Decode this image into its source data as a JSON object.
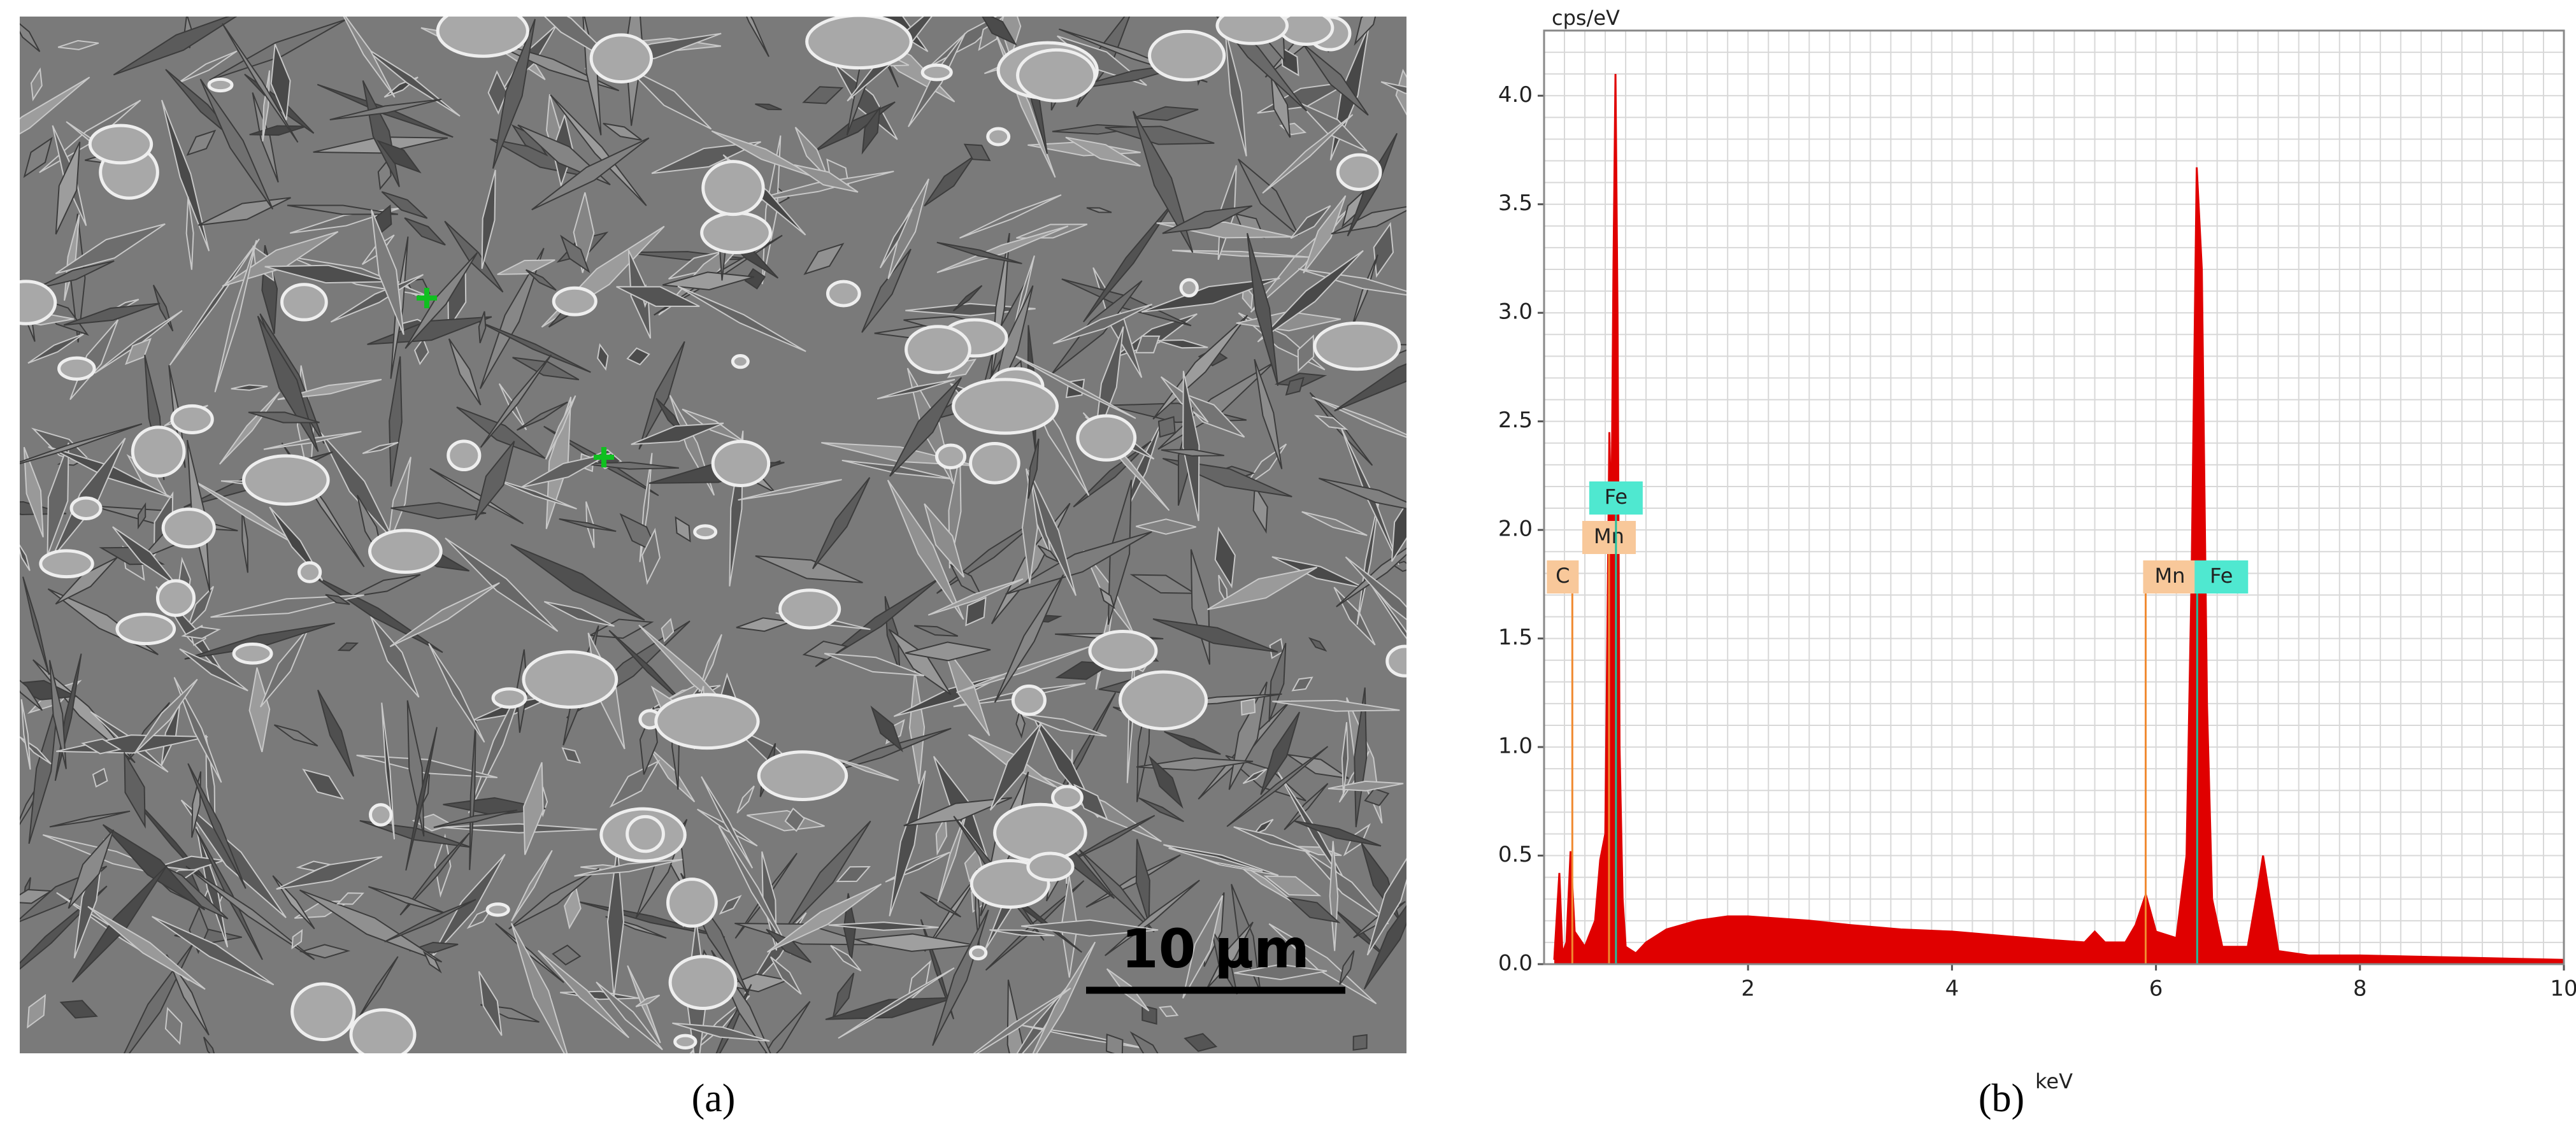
{
  "figure": {
    "caption_a": "(a)",
    "caption_b": "(b)",
    "scale_bar": "10 µm"
  },
  "chart_data": {
    "type": "spectrum",
    "title": "cps/eV",
    "x_label": "keV",
    "color": "#e00000",
    "x": [
      0.1,
      0.15,
      0.18,
      0.22,
      0.26,
      0.3,
      0.4,
      0.5,
      0.55,
      0.6,
      0.62,
      0.64,
      0.66,
      0.68,
      0.7,
      0.72,
      0.74,
      0.77,
      0.8,
      0.9,
      1.0,
      1.2,
      1.5,
      1.8,
      2.0,
      2.3,
      2.6,
      3.0,
      3.5,
      4.0,
      4.5,
      5.0,
      5.3,
      5.4,
      5.5,
      5.7,
      5.8,
      5.9,
      6.0,
      6.2,
      6.3,
      6.35,
      6.4,
      6.45,
      6.5,
      6.55,
      6.65,
      6.9,
      7.0,
      7.05,
      7.1,
      7.2,
      7.5,
      8.0,
      9.0,
      10.0
    ],
    "values": [
      0.02,
      0.42,
      0.05,
      0.1,
      0.52,
      0.15,
      0.08,
      0.2,
      0.48,
      0.6,
      1.5,
      2.45,
      2.0,
      3.2,
      4.1,
      3.0,
      1.0,
      0.3,
      0.08,
      0.05,
      0.1,
      0.16,
      0.2,
      0.22,
      0.22,
      0.21,
      0.2,
      0.18,
      0.16,
      0.15,
      0.13,
      0.11,
      0.1,
      0.15,
      0.1,
      0.1,
      0.18,
      0.32,
      0.15,
      0.12,
      0.5,
      1.8,
      3.67,
      3.2,
      1.2,
      0.3,
      0.08,
      0.08,
      0.35,
      0.5,
      0.35,
      0.06,
      0.04,
      0.04,
      0.03,
      0.02
    ],
    "markers": [
      {
        "label": "C",
        "x": 0.277,
        "color": "#f8c89a"
      },
      {
        "label": "Mn",
        "x": 0.637,
        "color": "#f8c89a"
      },
      {
        "label": "Fe",
        "x": 0.705,
        "color": "#4fe8d0"
      },
      {
        "label": "Mn",
        "x": 5.899,
        "color": "#f8c89a"
      },
      {
        "label": "Fe",
        "x": 6.404,
        "color": "#4fe8d0"
      }
    ],
    "xlim": [
      0,
      10
    ],
    "ylim": [
      0,
      4.3
    ],
    "xticks": [
      2,
      4,
      6,
      8,
      10
    ],
    "yticks": [
      {
        "value": 0,
        "label": "0.0"
      },
      0.5,
      {
        "value": 1,
        "label": "1.0"
      },
      1.5,
      {
        "value": 2,
        "label": "2.0"
      },
      2.5,
      {
        "value": 3,
        "label": "3.0"
      },
      3.5,
      {
        "value": 4,
        "label": "4.0"
      }
    ],
    "grid": true,
    "grid_step_x": 0.2,
    "grid_step_y": 0.1
  }
}
